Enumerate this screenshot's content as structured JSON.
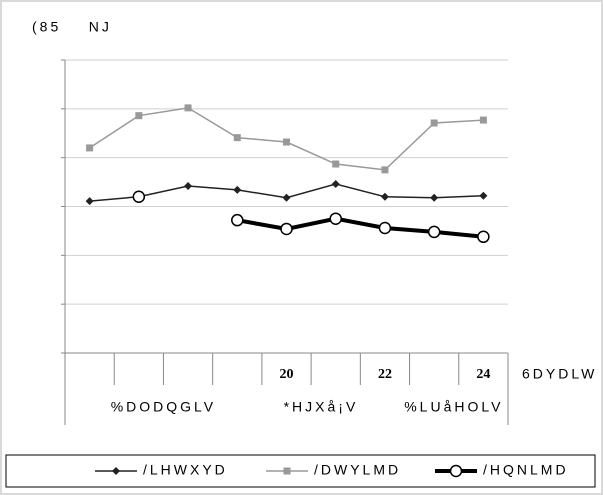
{
  "chart_data": {
    "type": "line",
    "title": "(85    NJ",
    "x_label": "6DYDLW",
    "categories": [
      null,
      null,
      null,
      null,
      "20",
      null,
      "22",
      null,
      "24"
    ],
    "months": [
      "%DODQGLV",
      "*HJXå¡V",
      "%LUåHOLV"
    ],
    "ylim": [
      0,
      6
    ],
    "yticks": [
      0,
      1,
      2,
      3,
      4,
      5,
      6
    ],
    "grid": true,
    "series": [
      {
        "name": "/LHWXYD",
        "color": "#222222",
        "marker": "diamond",
        "values": [
          3.11,
          3.2,
          3.42,
          3.34,
          3.18,
          3.46,
          3.2,
          3.18,
          3.22
        ]
      },
      {
        "name": "/DWYLMD",
        "color": "#999999",
        "marker": "square",
        "values": [
          4.2,
          4.86,
          5.02,
          4.41,
          4.32,
          3.87,
          3.75,
          4.71,
          4.77
        ]
      },
      {
        "name": "/HQNLMD",
        "color": "#000000",
        "marker": "circle",
        "values": [
          null,
          3.2,
          null,
          2.72,
          2.54,
          2.75,
          2.56,
          2.48,
          2.38
        ]
      }
    ]
  }
}
